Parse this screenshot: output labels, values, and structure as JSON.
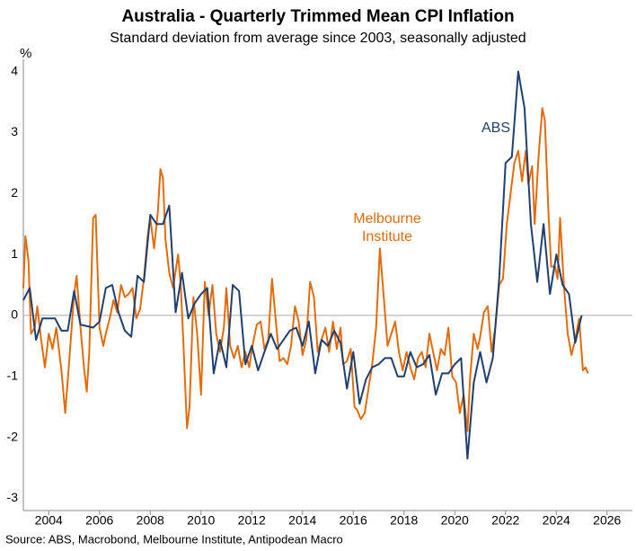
{
  "chart_data": {
    "type": "line",
    "title": "Australia - Quarterly Trimmed Mean CPI Inflation",
    "subtitle": "Standard deviation from average since 2003, seasonally adjusted",
    "y_label": "%",
    "source": "Source: ABS, Macrobond, Melbourne Institute, Antipodean Macro",
    "xlim": [
      2003,
      2027
    ],
    "xticks": [
      2004,
      2006,
      2008,
      2010,
      2012,
      2014,
      2016,
      2018,
      2020,
      2022,
      2024,
      2026
    ],
    "ylim": [
      -3.2,
      4.2
    ],
    "yticks": [
      -3,
      -2,
      -1,
      0,
      1,
      2,
      3,
      4
    ],
    "zero_line": true,
    "series": [
      {
        "name": "Melbourne Institute",
        "color": "#e36c0a",
        "x": [
          2003.0,
          2003.08,
          2003.2,
          2003.3,
          2003.45,
          2003.55,
          2003.7,
          2003.85,
          2004.0,
          2004.15,
          2004.3,
          2004.5,
          2004.65,
          2004.8,
          2005.0,
          2005.1,
          2005.25,
          2005.4,
          2005.5,
          2005.6,
          2005.75,
          2005.85,
          2006.0,
          2006.15,
          2006.25,
          2006.4,
          2006.55,
          2006.7,
          2006.85,
          2007.0,
          2007.15,
          2007.3,
          2007.45,
          2007.6,
          2007.75,
          2007.9,
          2008.0,
          2008.15,
          2008.3,
          2008.4,
          2008.5,
          2008.6,
          2008.75,
          2008.9,
          2009.1,
          2009.2,
          2009.3,
          2009.45,
          2009.55,
          2009.7,
          2009.85,
          2010.0,
          2010.15,
          2010.3,
          2010.45,
          2010.6,
          2010.75,
          2010.9,
          2011.0,
          2011.15,
          2011.3,
          2011.45,
          2011.6,
          2011.75,
          2011.9,
          2012.05,
          2012.2,
          2012.35,
          2012.5,
          2012.65,
          2012.8,
          2012.95,
          2013.1,
          2013.25,
          2013.4,
          2013.55,
          2013.7,
          2013.85,
          2014.0,
          2014.15,
          2014.3,
          2014.45,
          2014.6,
          2014.75,
          2014.9,
          2015.05,
          2015.2,
          2015.35,
          2015.5,
          2015.6,
          2015.75,
          2015.9,
          2016.05,
          2016.15,
          2016.3,
          2016.45,
          2016.6,
          2016.75,
          2016.9,
          2017.05,
          2017.2,
          2017.35,
          2017.5,
          2017.65,
          2017.8,
          2017.95,
          2018.1,
          2018.25,
          2018.4,
          2018.55,
          2018.7,
          2018.85,
          2019.0,
          2019.15,
          2019.3,
          2019.45,
          2019.6,
          2019.75,
          2019.9,
          2020.05,
          2020.2,
          2020.35,
          2020.5,
          2020.6,
          2020.75,
          2020.9,
          2021.0,
          2021.15,
          2021.3,
          2021.45,
          2021.6,
          2021.75,
          2021.9,
          2022.05,
          2022.2,
          2022.35,
          2022.5,
          2022.65,
          2022.8,
          2022.9,
          2023.05,
          2023.15,
          2023.3,
          2023.45,
          2023.55,
          2023.7,
          2023.8,
          2023.95,
          2024.05,
          2024.15,
          2024.3,
          2024.45,
          2024.6,
          2024.75,
          2024.9,
          2025.05,
          2025.15,
          2025.25
        ],
        "values": [
          0.45,
          1.3,
          0.9,
          -0.3,
          -0.2,
          0.15,
          -0.4,
          -0.85,
          -0.3,
          -0.55,
          -0.2,
          -0.9,
          -1.6,
          -0.8,
          0.35,
          0.65,
          -0.2,
          -0.9,
          -1.25,
          -0.6,
          1.6,
          1.65,
          -0.2,
          -0.5,
          -0.3,
          -0.05,
          0.25,
          0.05,
          0.5,
          0.3,
          0.35,
          0.45,
          -0.05,
          0.1,
          0.6,
          1.3,
          1.6,
          1.1,
          1.7,
          2.4,
          2.25,
          1.25,
          0.7,
          0.45,
          1.0,
          0.5,
          -0.4,
          -1.85,
          -1.5,
          0.3,
          -0.3,
          -1.3,
          0.55,
          0.0,
          0.5,
          -0.3,
          -0.6,
          -0.2,
          0.45,
          -0.5,
          -0.7,
          -0.5,
          -0.85,
          -0.6,
          -0.85,
          -0.45,
          -0.15,
          -0.1,
          -0.55,
          -0.4,
          0.6,
          -0.1,
          -0.75,
          -0.7,
          -0.8,
          -0.5,
          0.15,
          -0.1,
          -0.65,
          -0.4,
          0.55,
          0.3,
          -0.6,
          -0.4,
          -0.2,
          -0.6,
          -0.1,
          -0.55,
          -0.2,
          -0.8,
          -0.75,
          -0.55,
          -1.5,
          -1.55,
          -1.7,
          -1.6,
          -1.2,
          -0.8,
          -0.2,
          1.1,
          0.3,
          -0.5,
          -0.3,
          -0.1,
          -0.6,
          -0.9,
          -0.6,
          -0.85,
          -1.05,
          -0.7,
          -0.6,
          -0.85,
          -0.3,
          -0.6,
          -0.9,
          -0.55,
          -0.65,
          -0.2,
          -1.0,
          -1.1,
          -1.6,
          -1.3,
          -1.9,
          -1.05,
          -0.3,
          -0.55,
          -0.35,
          0.05,
          0.15,
          -0.6,
          -0.2,
          0.5,
          0.6,
          1.5,
          2.0,
          2.5,
          2.7,
          2.2,
          2.7,
          2.15,
          2.45,
          1.5,
          2.6,
          3.4,
          3.2,
          1.6,
          0.8,
          0.8,
          0.6,
          1.6,
          0.5,
          -0.3,
          -0.65,
          -0.4,
          -0.05,
          -0.9,
          -0.85,
          -0.95
        ]
      },
      {
        "name": "ABS",
        "color": "#1f3f6e",
        "x": [
          2003.0,
          2003.25,
          2003.5,
          2003.75,
          2004.0,
          2004.25,
          2004.5,
          2004.75,
          2005.0,
          2005.25,
          2005.75,
          2006.0,
          2006.25,
          2006.5,
          2006.75,
          2007.0,
          2007.25,
          2007.5,
          2007.75,
          2008.0,
          2008.25,
          2008.5,
          2008.75,
          2009.0,
          2009.25,
          2009.5,
          2009.75,
          2010.0,
          2010.25,
          2010.5,
          2010.75,
          2011.0,
          2011.25,
          2011.5,
          2011.75,
          2012.0,
          2012.25,
          2012.5,
          2012.75,
          2013.0,
          2013.25,
          2013.5,
          2013.75,
          2014.0,
          2014.25,
          2014.5,
          2014.75,
          2015.0,
          2015.25,
          2015.5,
          2015.75,
          2016.0,
          2016.25,
          2016.5,
          2016.75,
          2017.0,
          2017.25,
          2017.5,
          2017.75,
          2018.0,
          2018.25,
          2018.5,
          2018.75,
          2019.0,
          2019.25,
          2019.5,
          2019.75,
          2020.0,
          2020.25,
          2020.5,
          2020.75,
          2021.0,
          2021.25,
          2021.5,
          2021.75,
          2022.0,
          2022.25,
          2022.5,
          2022.75,
          2023.0,
          2023.25,
          2023.5,
          2023.75,
          2024.0,
          2024.25,
          2024.5,
          2024.75,
          2025.0
        ],
        "values": [
          0.25,
          0.45,
          -0.4,
          -0.05,
          -0.05,
          -0.05,
          -0.25,
          -0.25,
          0.4,
          -0.15,
          -0.2,
          -0.1,
          0.45,
          0.5,
          0.05,
          -0.25,
          -0.35,
          0.65,
          0.55,
          1.65,
          1.5,
          1.5,
          1.8,
          0.05,
          0.7,
          -0.05,
          0.2,
          0.35,
          0.45,
          -0.95,
          -0.4,
          -0.85,
          0.5,
          0.4,
          -0.8,
          -0.5,
          -0.9,
          -0.6,
          -0.3,
          -0.55,
          -0.4,
          -0.25,
          -0.2,
          -0.5,
          -0.1,
          -0.95,
          -0.4,
          -0.5,
          -0.25,
          -0.45,
          -1.2,
          -0.6,
          -1.45,
          -1.05,
          -0.85,
          -0.8,
          -0.7,
          -0.7,
          -1.0,
          -1.0,
          -0.6,
          -0.85,
          -0.8,
          -0.65,
          -1.3,
          -0.95,
          -0.95,
          -0.8,
          -0.7,
          -2.35,
          -1.1,
          -0.6,
          -1.1,
          -0.7,
          0.6,
          2.5,
          2.6,
          4.0,
          3.4,
          1.5,
          0.55,
          1.5,
          0.35,
          1.0,
          0.5,
          0.35,
          -0.45,
          0.0
        ]
      }
    ]
  }
}
